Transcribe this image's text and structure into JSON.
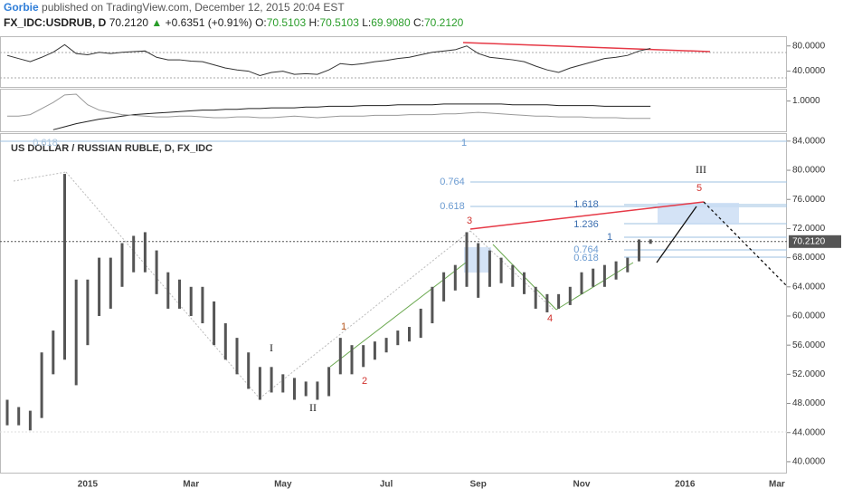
{
  "header": {
    "author": "Gorbie",
    "text": "published on TradingView.com, December 12, 2015 20:04 EST"
  },
  "legend": {
    "symbol": "FX_IDC:USDRUB, D",
    "price": "70.2120",
    "change": "+0.6351 (+0.91%)",
    "open_label": "O:",
    "open": "70.5103",
    "high_label": "H:",
    "high": "70.5103",
    "low_label": "L:",
    "low": "69.9080",
    "close_label": "C:",
    "close": "70.2120"
  },
  "annotations": [
    "0.618",
    "1",
    "0.764",
    "0.618",
    "1.618",
    "1.236",
    "1",
    "0.764",
    "0.618",
    "III",
    "5",
    "3",
    "1",
    "2",
    "4",
    "I",
    "II"
  ],
  "chart_data": [
    {
      "type": "range",
      "title": "US DOLLAR / RUSSIAN RUBLE, D, FX_IDC",
      "color": "#555555",
      "categories": [
        null,
        null,
        null,
        null,
        null,
        null,
        null,
        "2015",
        null,
        null,
        null,
        null,
        null,
        null,
        null,
        null,
        "Mar",
        null,
        null,
        null,
        null,
        null,
        null,
        null,
        "May",
        null,
        null,
        null,
        null,
        null,
        null,
        null,
        null,
        "Jul",
        null,
        null,
        null,
        null,
        null,
        null,
        null,
        "Sep",
        null,
        null,
        null,
        null,
        null,
        null,
        null,
        null,
        "Nov",
        null,
        null,
        null,
        null,
        null,
        null,
        null,
        null,
        "2016",
        null,
        null,
        null,
        null,
        null,
        null,
        null,
        "Mar"
      ],
      "high": [
        48.5,
        47.5,
        47,
        55,
        58,
        79.5,
        65,
        65,
        68,
        68,
        70,
        71,
        71.5,
        69,
        66,
        65,
        64,
        64,
        62,
        59,
        57,
        55,
        53,
        53,
        52,
        51.5,
        51,
        51,
        53,
        57,
        56,
        56,
        56.5,
        57,
        58,
        58.5,
        61,
        64,
        66,
        67,
        71.5,
        70,
        69,
        68,
        67,
        66,
        64,
        63,
        63,
        64,
        66,
        66.5,
        67,
        67.5,
        68,
        70.5,
        70.51,
        null,
        null,
        null,
        null,
        null,
        null,
        null,
        null,
        null,
        null,
        null
      ],
      "low": [
        45,
        45,
        44.3,
        46,
        52,
        54,
        50.5,
        56,
        60,
        61,
        64,
        66,
        66,
        63,
        61,
        61,
        60,
        59,
        56,
        54,
        52,
        50,
        48.5,
        49.5,
        49.5,
        48.5,
        49,
        48.5,
        49,
        52,
        52,
        53,
        54,
        55,
        56,
        56.5,
        57,
        59,
        62,
        63.5,
        64,
        62.5,
        64,
        64.5,
        64,
        63,
        61,
        60.5,
        61,
        61.5,
        63,
        64,
        64,
        65,
        66,
        67.5,
        69.91,
        null,
        null,
        null,
        null,
        null,
        null,
        null,
        null,
        null,
        null,
        null
      ],
      "ylim": [
        38.5,
        85.1
      ],
      "yticks": [
        {
          "value": 40,
          "label": "40.0000"
        },
        {
          "value": 44,
          "label": "44.0000"
        },
        {
          "value": 48,
          "label": "48.0000"
        },
        {
          "value": 52,
          "label": "52.0000"
        },
        {
          "value": 56,
          "label": "56.0000"
        },
        {
          "value": 60,
          "label": "60.0000"
        },
        {
          "value": 64,
          "label": "64.0000"
        },
        {
          "value": 68,
          "label": "68.0000"
        },
        {
          "value": 72,
          "label": "72.0000"
        },
        {
          "value": 76,
          "label": "76.0000"
        },
        {
          "value": 80,
          "label": "80.0000"
        },
        {
          "value": 84,
          "label": "84.0000"
        }
      ],
      "last_price": {
        "value": 70.212,
        "label": "70.2120"
      }
    },
    {
      "type": "line",
      "color": "#333333",
      "values": [
        65,
        60,
        55,
        62,
        70,
        82,
        68,
        66,
        70,
        68,
        70,
        71,
        72,
        62,
        58,
        58,
        56,
        55,
        50,
        45,
        42,
        40,
        33,
        38,
        40,
        35,
        36,
        35,
        42,
        52,
        50,
        52,
        55,
        57,
        60,
        62,
        66,
        70,
        72,
        74,
        80,
        68,
        62,
        60,
        58,
        55,
        48,
        42,
        38,
        45,
        50,
        55,
        60,
        62,
        65,
        72,
        76
      ],
      "ylim": [
        15,
        94
      ],
      "yticks": [
        {
          "value": 80,
          "label": "80.0000"
        },
        {
          "value": 40,
          "label": "40.0000"
        }
      ]
    },
    {
      "type": "line",
      "series": [
        {
          "color": "#222222",
          "values": [
            null,
            null,
            null,
            null,
            0.62,
            0.66,
            0.7,
            0.73,
            0.76,
            0.78,
            0.8,
            0.82,
            0.83,
            0.84,
            0.85,
            0.86,
            0.87,
            0.88,
            0.88,
            0.89,
            0.89,
            0.9,
            0.9,
            0.91,
            0.91,
            0.91,
            0.92,
            0.92,
            0.93,
            0.93,
            0.93,
            0.94,
            0.94,
            0.94,
            0.95,
            0.95,
            0.95,
            0.95,
            0.96,
            0.96,
            0.96,
            0.96,
            0.96,
            0.96,
            0.95,
            0.95,
            0.95,
            0.95,
            0.94,
            0.94,
            0.94,
            0.94,
            0.93,
            0.93,
            0.93,
            0.93,
            0.93
          ]
        },
        {
          "color": "#999999",
          "values": [
            0.8,
            0.8,
            0.82,
            0.9,
            0.98,
            1.08,
            1.09,
            0.95,
            0.88,
            0.85,
            0.82,
            0.81,
            0.8,
            0.79,
            0.79,
            0.8,
            0.8,
            0.79,
            0.78,
            0.78,
            0.79,
            0.79,
            0.78,
            0.78,
            0.79,
            0.8,
            0.79,
            0.78,
            0.79,
            0.8,
            0.8,
            0.8,
            0.81,
            0.81,
            0.81,
            0.82,
            0.82,
            0.82,
            0.83,
            0.83,
            0.84,
            0.85,
            0.84,
            0.83,
            0.82,
            0.81,
            0.8,
            0.8,
            0.79,
            0.79,
            0.79,
            0.78,
            0.78,
            0.78,
            0.77,
            0.77,
            0.77
          ]
        }
      ],
      "ylim": [
        0.6,
        1.15
      ],
      "yticks": [
        {
          "value": 1,
          "label": "1.0000"
        }
      ]
    }
  ]
}
